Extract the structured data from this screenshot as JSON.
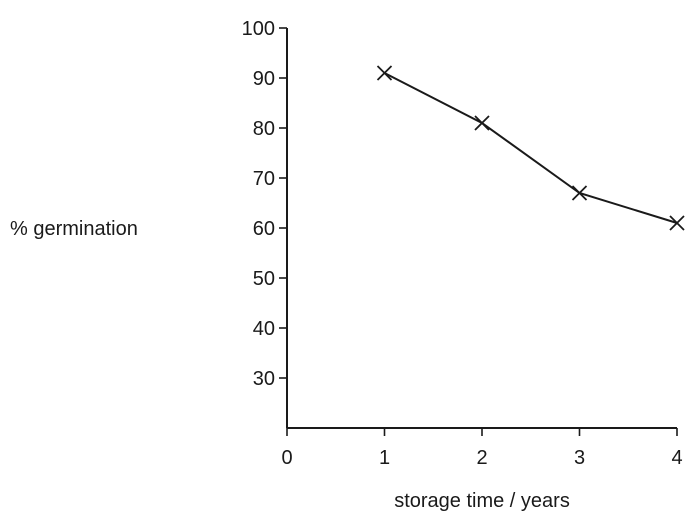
{
  "chart_data": {
    "type": "line",
    "title": "",
    "xlabel": "storage time / years",
    "ylabel": "% germination",
    "x": [
      1,
      2,
      3,
      4
    ],
    "series": [
      {
        "values": [
          91,
          81,
          67,
          61
        ],
        "marker": "x"
      }
    ],
    "xlim": [
      0,
      4
    ],
    "ylim": [
      20,
      100
    ],
    "xticks": [
      "0",
      "1",
      "2",
      "3",
      "4"
    ],
    "yticks": [
      "30",
      "40",
      "50",
      "60",
      "70",
      "80",
      "90",
      "100"
    ],
    "grid": false,
    "legend": "none",
    "line_color": "#1a1a1a"
  }
}
